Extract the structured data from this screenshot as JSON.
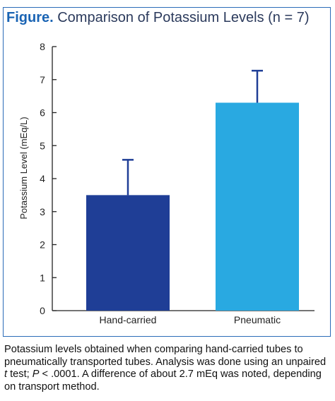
{
  "figure": {
    "label": "Figure.",
    "title": "Comparison of Potassium Levels (n = 7)"
  },
  "caption": {
    "part1": "Potassium levels obtained when comparing hand-carried tubes to pneumatically transported tubes. Analysis was done using an unpaired ",
    "italic_t": "t",
    "part2": " test; ",
    "italic_p": "P",
    "part3": " < .0001. A difference of about 2.7 mEq was noted, depending on transport method."
  },
  "chart_data": {
    "type": "bar",
    "title": "Comparison of Potassium Levels (n = 7)",
    "categories": [
      "Hand-carried",
      "Pneumatic"
    ],
    "values": [
      3.5,
      6.3
    ],
    "error_upper": [
      4.57,
      7.27
    ],
    "ylabel": "Potassium Level (mEq/L)",
    "xlabel": "",
    "ylim": [
      0,
      8
    ],
    "yticks": [
      "0",
      "1",
      "2",
      "3",
      "4",
      "5",
      "6",
      "7",
      "8"
    ],
    "grid": false,
    "colors": [
      "#1f3e96",
      "#29a9e1"
    ],
    "axis_color": "#222222"
  }
}
